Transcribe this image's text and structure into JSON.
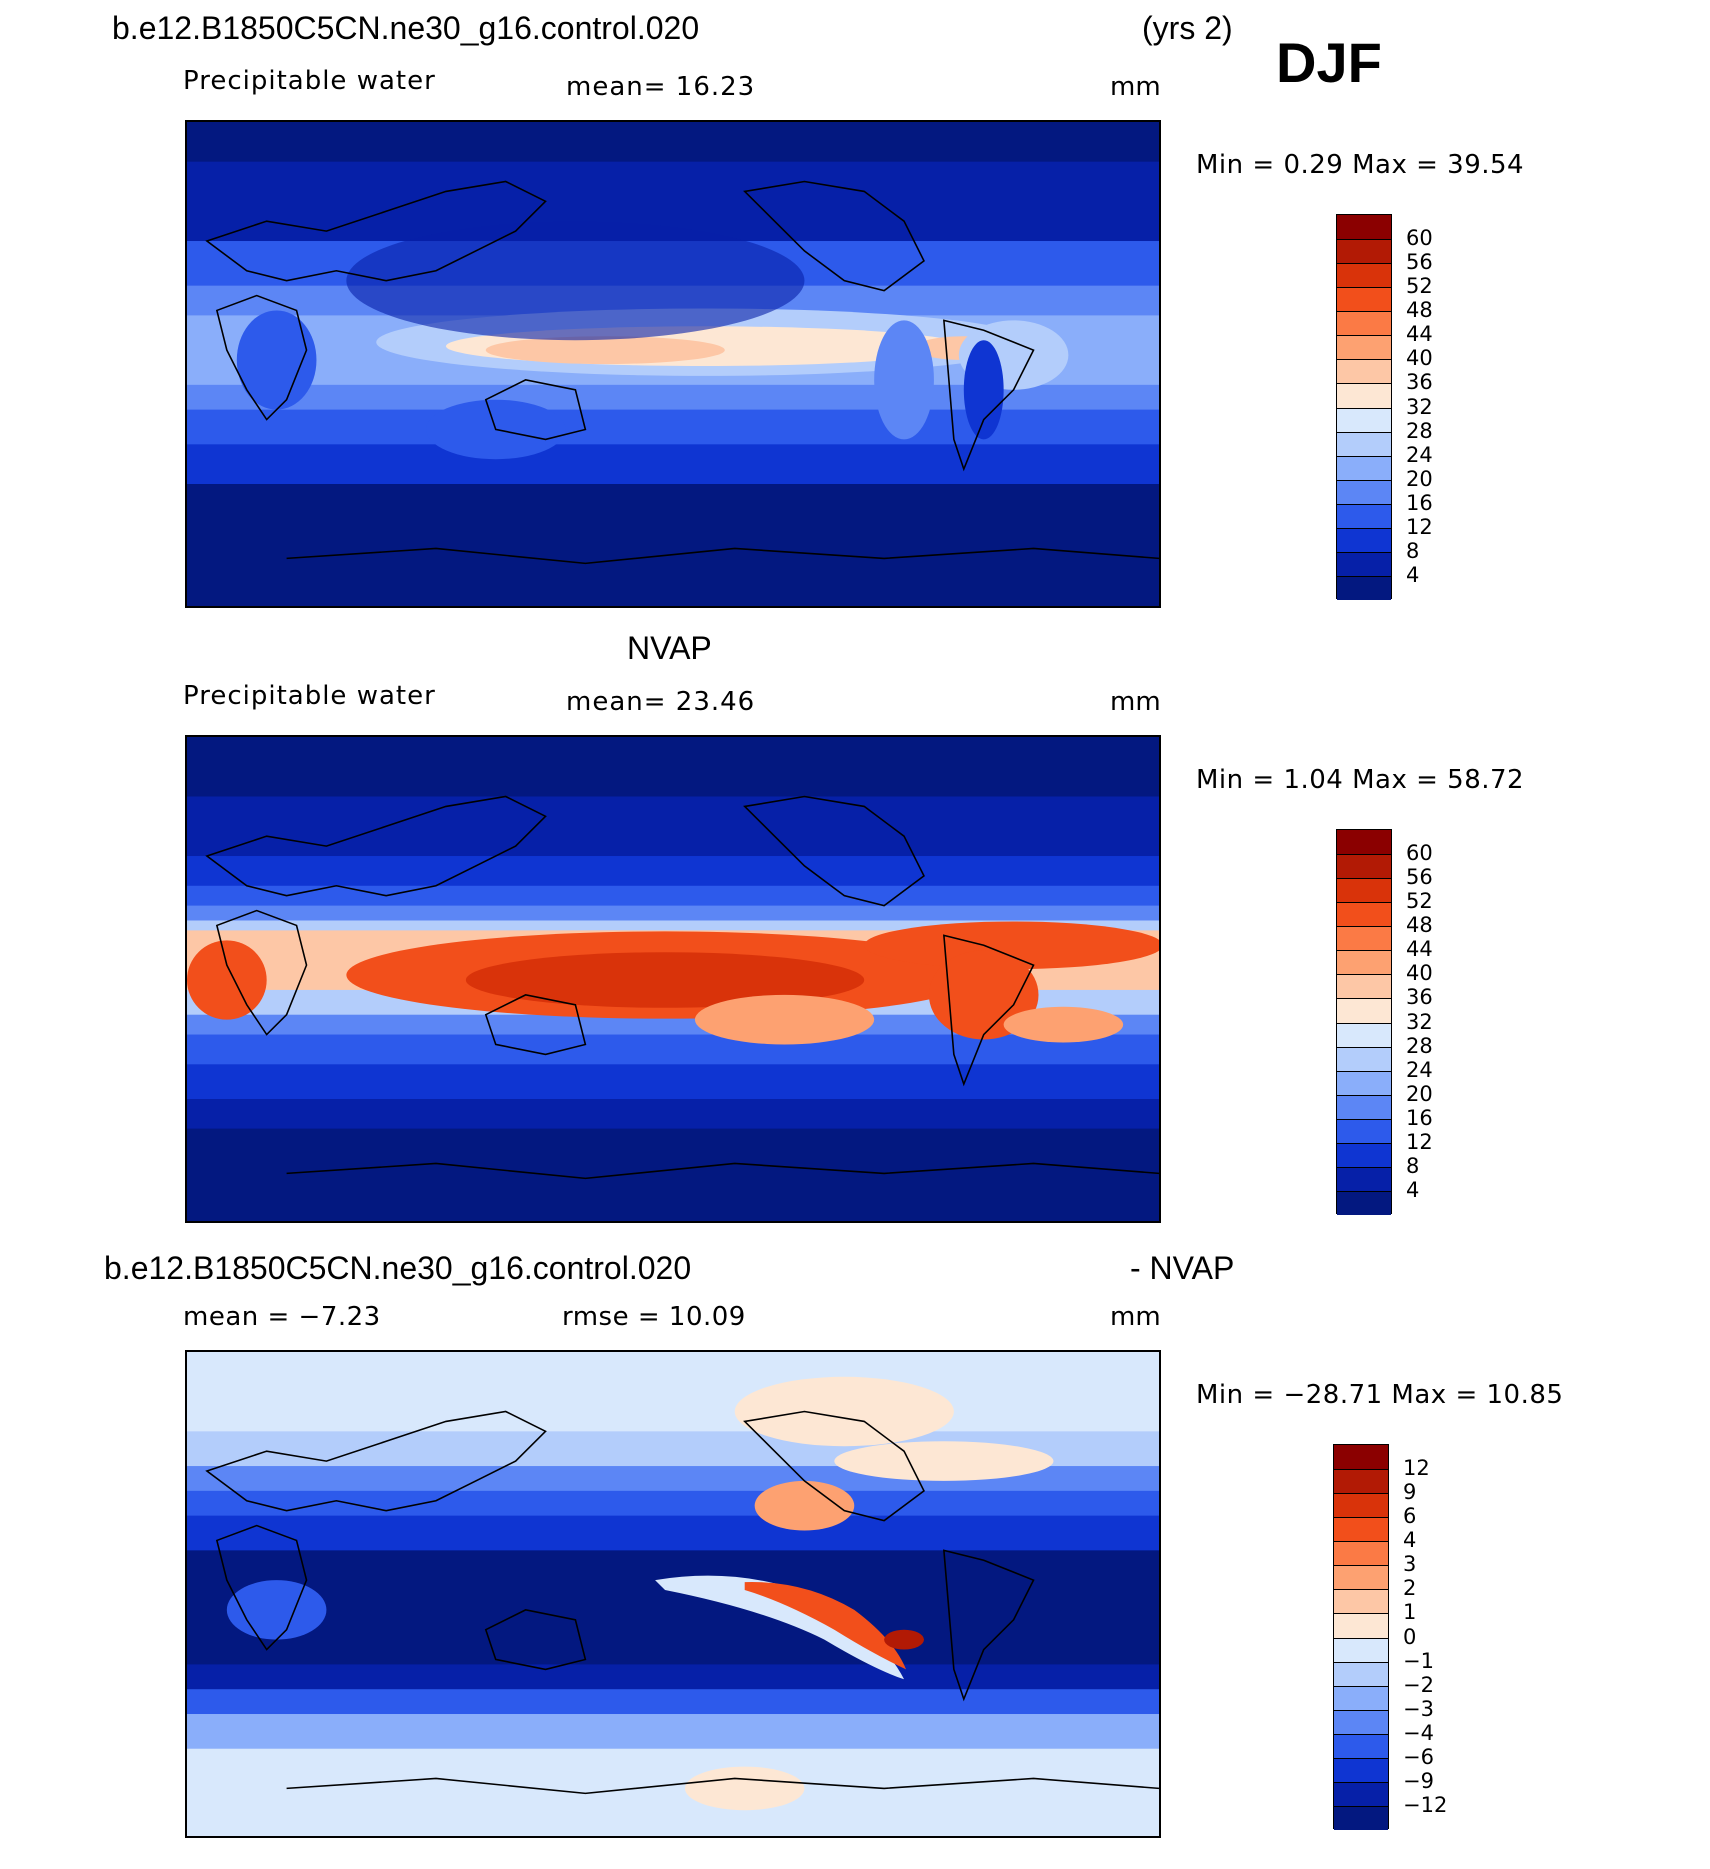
{
  "header": {
    "case_title": "b.e12.B1850C5CN.ne30_g16.control.020",
    "years": "(yrs 2)",
    "season": "DJF"
  },
  "panels": [
    {
      "title": "",
      "variable": "Precipitable water",
      "mean_text": "mean=   16.23",
      "units": "mm",
      "minmax_text": "Min =    0.29  Max =   39.54",
      "colorbar_labels": [
        "60",
        "56",
        "52",
        "48",
        "44",
        "40",
        "36",
        "32",
        "28",
        "24",
        "20",
        "16",
        "12",
        "8",
        "4"
      ]
    },
    {
      "title": "NVAP",
      "variable": "Precipitable water",
      "mean_text": "mean=   23.46",
      "units": "mm",
      "minmax_text": "Min =    1.04  Max =   58.72",
      "colorbar_labels": [
        "60",
        "56",
        "52",
        "48",
        "44",
        "40",
        "36",
        "32",
        "28",
        "24",
        "20",
        "16",
        "12",
        "8",
        "4"
      ]
    },
    {
      "title_left": "b.e12.B1850C5CN.ne30_g16.control.020",
      "title_right": "- NVAP",
      "mean_text": "mean =   −7.23",
      "rmse_text": "rmse =   10.09",
      "units": "mm",
      "minmax_text": "Min = −28.71  Max =   10.85",
      "colorbar_labels": [
        "12",
        "9",
        "6",
        "4",
        "3",
        "2",
        "1",
        "0",
        "−1",
        "−2",
        "−3",
        "−4",
        "−6",
        "−9",
        "−12"
      ]
    }
  ],
  "colors": {
    "colorbar": [
      "#8b0000",
      "#b21a05",
      "#d9330a",
      "#f24f1b",
      "#fb7a45",
      "#fda171",
      "#fdc7a6",
      "#fde7d4",
      "#d8e8fc",
      "#b3cdfb",
      "#8aaefa",
      "#5c86f5",
      "#2d5aeb",
      "#0f35d2",
      "#0620a8",
      "#031880"
    ]
  }
}
